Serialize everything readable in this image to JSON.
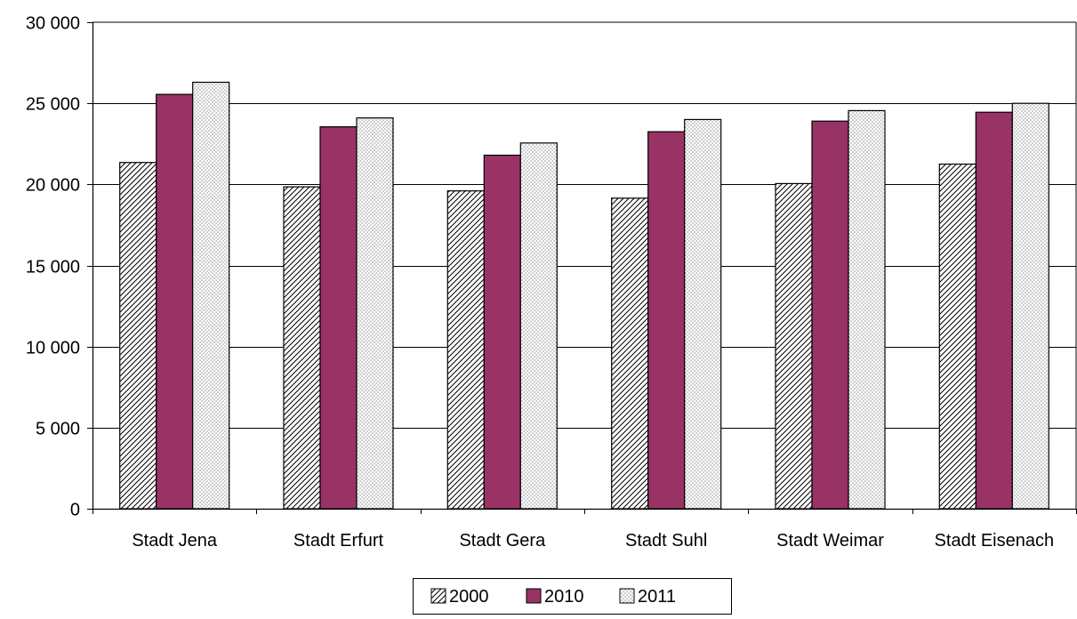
{
  "chart_data": {
    "type": "bar",
    "title": "",
    "xlabel": "",
    "ylabel": "",
    "categories": [
      "Stadt Jena",
      "Stadt Erfurt",
      "Stadt Gera",
      "Stadt Suhl",
      "Stadt Weimar",
      "Stadt Eisenach"
    ],
    "series": [
      {
        "name": "2000",
        "values": [
          21350,
          19850,
          19600,
          19150,
          20050,
          21250
        ],
        "fill": "hatch-diagonal"
      },
      {
        "name": "2010",
        "values": [
          25550,
          23550,
          21800,
          23250,
          23900,
          24450
        ],
        "fill": "#993366"
      },
      {
        "name": "2011",
        "values": [
          26300,
          24100,
          22550,
          24000,
          24550,
          25000
        ],
        "fill": "dots"
      }
    ],
    "ylim": [
      0,
      30000
    ],
    "yticks": [
      0,
      5000,
      10000,
      15000,
      20000,
      25000,
      30000
    ],
    "ytick_labels": [
      "0",
      "5 000",
      "10 000",
      "15 000",
      "20 000",
      "25 000",
      "30 000"
    ],
    "grid": true,
    "legend_position": "bottom-center",
    "legend": [
      "2000",
      "2010",
      "2011"
    ],
    "colors": {
      "series_2010": "#993366",
      "gridline": "#000000",
      "bar_border": "#000000"
    }
  }
}
